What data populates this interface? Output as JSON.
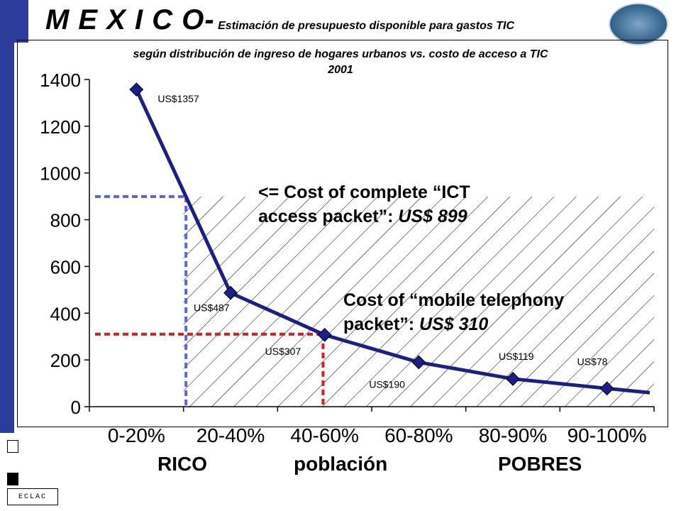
{
  "header": {
    "title_big": "M E X I C O-",
    "title_small": " Estimación de presupuesto disponible para gastos TIC",
    "subtitle_line1": "según distribución de ingreso de hogares urbanos vs. costo de acceso a TIC",
    "subtitle_line2": "2001"
  },
  "footer": {
    "eclac_text": "ECLAC"
  },
  "annotations": {
    "ict_line1": "<= Cost of complete “ICT",
    "ict_line2_prefix": "access packet”: ",
    "ict_line2_value": "US$ 899",
    "mobile_line1": "Cost of “mobile telephony",
    "mobile_line2_prefix": "packet”: ",
    "mobile_line2_value": "US$ 310"
  },
  "group_labels": {
    "left": "RICO",
    "middle": "población",
    "right": "POBRES"
  },
  "chart_data": {
    "type": "line",
    "title": "",
    "xlabel": "",
    "ylabel": "",
    "categories": [
      "0-20%",
      "20-40%",
      "40-60%",
      "60-80%",
      "80-90%",
      "90-100%"
    ],
    "series": [
      {
        "values": [
          1357,
          487,
          307,
          190,
          119,
          78
        ],
        "labels": [
          "US$1357",
          "US$487",
          "US$307",
          "US$190",
          "US$119",
          "US$78"
        ],
        "color": "#1a1f8c"
      }
    ],
    "ylim": [
      0,
      1400
    ],
    "yticks": [
      0,
      200,
      400,
      600,
      800,
      1000,
      1200,
      1400
    ],
    "reference_lines": [
      {
        "value": 899,
        "color": "#5b63e6"
      },
      {
        "value": 310,
        "color": "#e01a1a"
      }
    ],
    "grid": false
  }
}
